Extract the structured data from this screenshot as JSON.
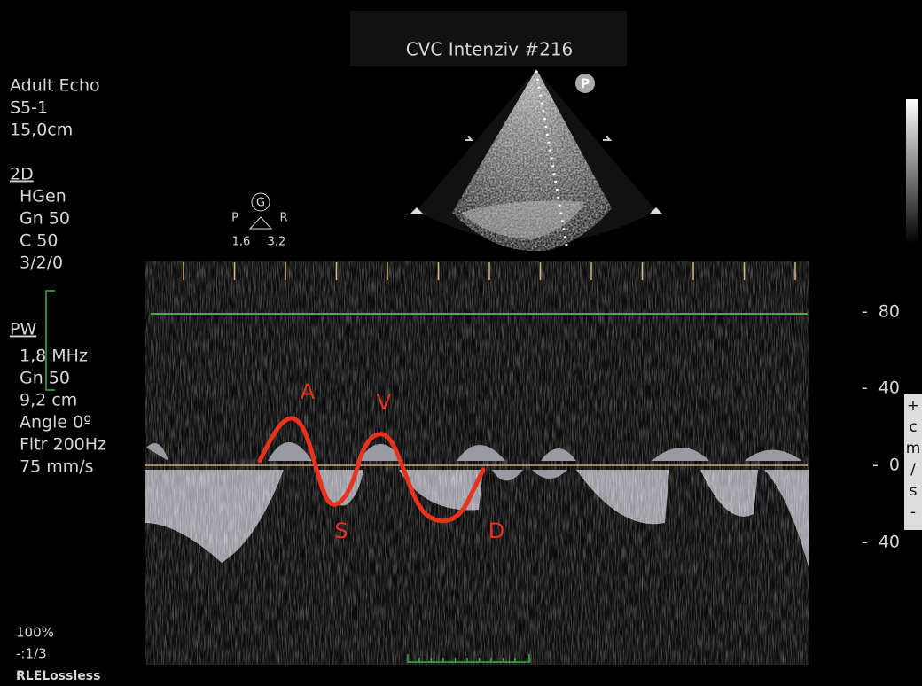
{
  "header": {
    "title": "CVC Intenziv #216"
  },
  "probe_marker": "P",
  "setup": {
    "lines": [
      "Adult Echo",
      "S5-1",
      "15,0cm"
    ]
  },
  "mode_2d": {
    "label": "2D",
    "lines": [
      "HGen",
      "Gn 50",
      "C 50",
      "3/2/0"
    ]
  },
  "mode_pw": {
    "label": "PW",
    "lines": [
      "1,8 MHz",
      "Gn 50",
      "9,2 cm",
      "Angle 0º",
      "Fltr 200Hz",
      "75 mm/s"
    ]
  },
  "orientation": {
    "center": "G",
    "left": "P",
    "right": "R",
    "left_value": "1,6",
    "right_value": "3,2"
  },
  "velocity_scale": {
    "labels": [
      "-  80",
      "-  40",
      "-  0",
      "-  40"
    ]
  },
  "wave_labels": {
    "a": "A",
    "v": "V",
    "s": "S",
    "d": "D"
  },
  "side_tab": {
    "chars": [
      "+",
      "c",
      "m",
      "/",
      "s",
      "-"
    ]
  },
  "footer": {
    "zoom": "100%",
    "frame": "-:1/3",
    "compression": "RLELossless"
  }
}
